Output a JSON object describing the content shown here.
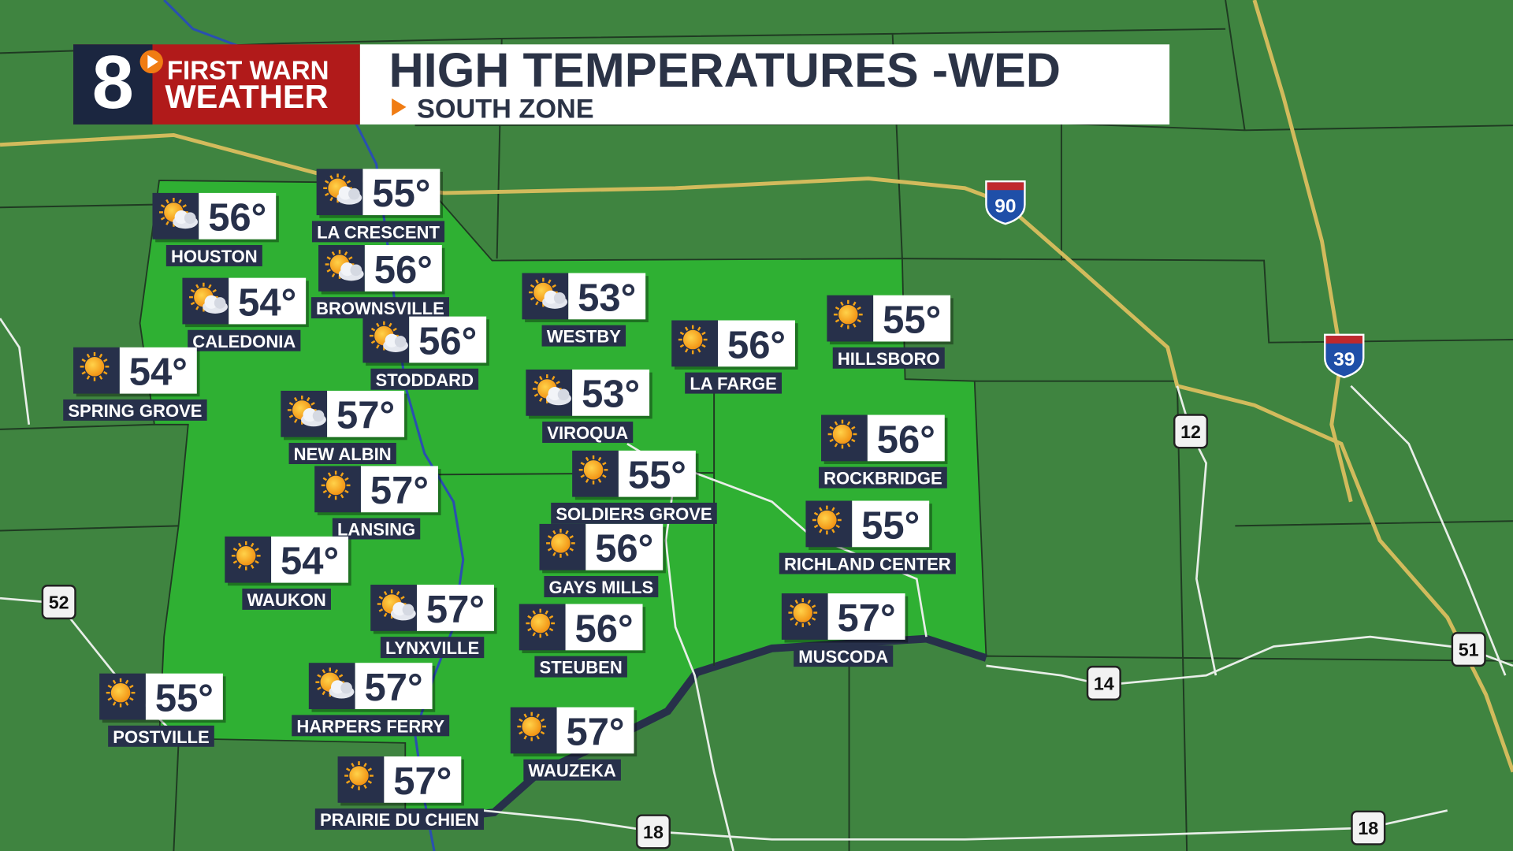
{
  "header": {
    "logo_number": "8",
    "logo_line1": "FIRST WARN",
    "logo_line2": "WEATHER",
    "title": "HIGH TEMPERATURES -WED",
    "subtitle": "SOUTH ZONE"
  },
  "cities": [
    {
      "name": "HOUSTON",
      "temp": "56°",
      "icon": "partly-cloudy"
    },
    {
      "name": "LA CRESCENT",
      "temp": "55°",
      "icon": "partly-cloudy"
    },
    {
      "name": "BROWNSVILLE",
      "temp": "56°",
      "icon": "partly-cloudy"
    },
    {
      "name": "CALEDONIA",
      "temp": "54°",
      "icon": "partly-cloudy"
    },
    {
      "name": "STODDARD",
      "temp": "56°",
      "icon": "partly-cloudy"
    },
    {
      "name": "SPRING GROVE",
      "temp": "54°",
      "icon": "sun"
    },
    {
      "name": "NEW ALBIN",
      "temp": "57°",
      "icon": "partly-cloudy"
    },
    {
      "name": "LANSING",
      "temp": "57°",
      "icon": "sun"
    },
    {
      "name": "WAUKON",
      "temp": "54°",
      "icon": "sun"
    },
    {
      "name": "LYNXVILLE",
      "temp": "57°",
      "icon": "partly-cloudy"
    },
    {
      "name": "HARPERS FERRY",
      "temp": "57°",
      "icon": "partly-cloudy"
    },
    {
      "name": "POSTVILLE",
      "temp": "55°",
      "icon": "sun"
    },
    {
      "name": "PRAIRIE DU CHIEN",
      "temp": "57°",
      "icon": "sun"
    },
    {
      "name": "WESTBY",
      "temp": "53°",
      "icon": "partly-cloudy"
    },
    {
      "name": "VIROQUA",
      "temp": "53°",
      "icon": "partly-cloudy"
    },
    {
      "name": "SOLDIERS GROVE",
      "temp": "55°",
      "icon": "sun"
    },
    {
      "name": "GAYS MILLS",
      "temp": "56°",
      "icon": "sun"
    },
    {
      "name": "STEUBEN",
      "temp": "56°",
      "icon": "sun"
    },
    {
      "name": "WAUZEKA",
      "temp": "57°",
      "icon": "sun"
    },
    {
      "name": "LA FARGE",
      "temp": "56°",
      "icon": "sun"
    },
    {
      "name": "HILLSBORO",
      "temp": "55°",
      "icon": "sun"
    },
    {
      "name": "ROCKBRIDGE",
      "temp": "56°",
      "icon": "sun"
    },
    {
      "name": "RICHLAND CENTER",
      "temp": "55°",
      "icon": "sun"
    },
    {
      "name": "MUSCODA",
      "temp": "57°",
      "icon": "sun"
    }
  ],
  "highways": [
    {
      "label": "90",
      "kind": "interstate"
    },
    {
      "label": "39",
      "kind": "interstate"
    },
    {
      "label": "12",
      "kind": "us"
    },
    {
      "label": "52",
      "kind": "us"
    },
    {
      "label": "14",
      "kind": "us"
    },
    {
      "label": "51",
      "kind": "us"
    },
    {
      "label": "18",
      "kind": "us"
    },
    {
      "label": "18",
      "kind": "us"
    }
  ]
}
